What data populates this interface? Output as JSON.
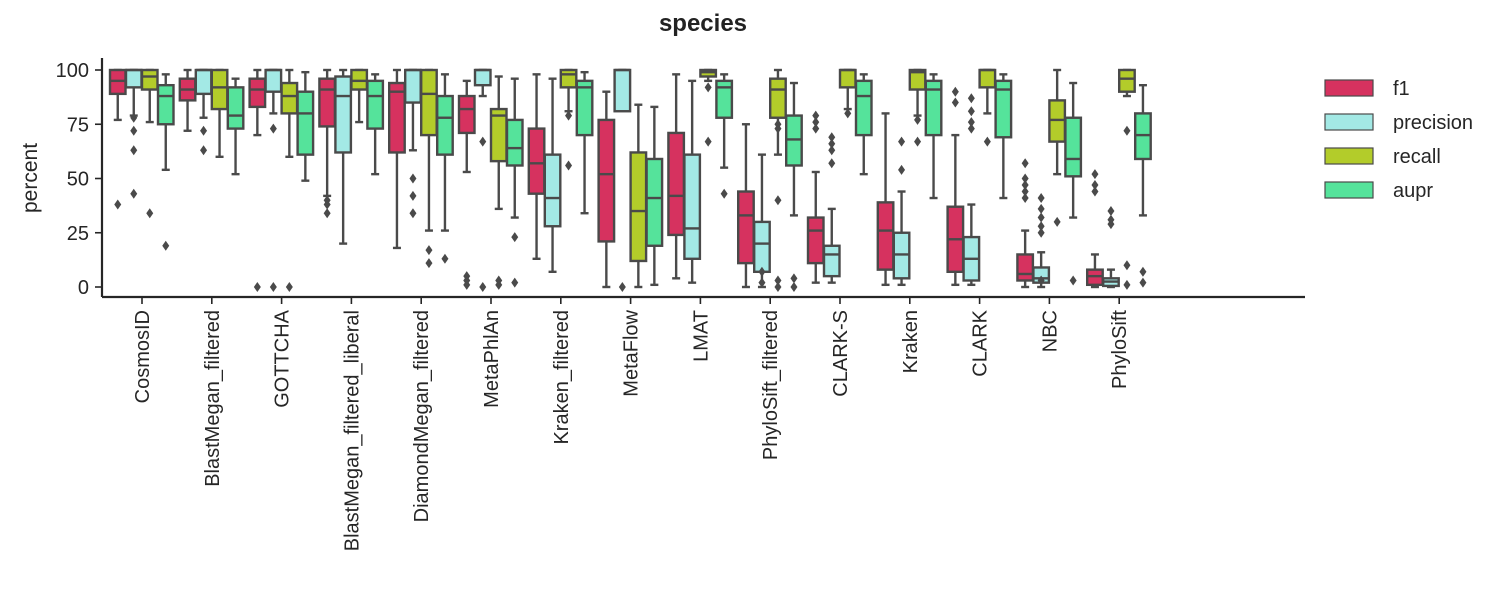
{
  "chart_data": {
    "type": "boxplot",
    "title": "species",
    "xlabel": "",
    "ylabel": "percent",
    "ylim": [
      -4,
      105
    ],
    "yticks": [
      0,
      25,
      50,
      75,
      100
    ],
    "grid": false,
    "legend_position": "right",
    "series_names": [
      "f1",
      "precision",
      "recall",
      "aupr"
    ],
    "series_colors": [
      "#d6325f",
      "#a3e9e5",
      "#b3cc2a",
      "#55e39b"
    ],
    "edge_color": "#4a4a4a",
    "categories": [
      "CosmosID",
      "BlastMegan_filtered",
      "GOTTCHA",
      "BlastMegan_filtered_liberal",
      "DiamondMegan_filtered",
      "MetaPhlAn",
      "Kraken_filtered",
      "MetaFlow",
      "LMAT",
      "PhyloSift_filtered",
      "CLARK-S",
      "Kraken",
      "CLARK",
      "NBC",
      "PhyloSift"
    ],
    "boxes": [
      [
        {
          "lo": 77,
          "q1": 89,
          "med": 95,
          "q3": 100,
          "hi": 100,
          "fliers": [
            38
          ]
        },
        {
          "lo": 79,
          "q1": 92,
          "med": 100,
          "q3": 100,
          "hi": 100,
          "fliers": [
            78,
            72,
            63,
            43
          ]
        },
        {
          "lo": 76,
          "q1": 91,
          "med": 97,
          "q3": 100,
          "hi": 100,
          "fliers": [
            34
          ]
        },
        {
          "lo": 54,
          "q1": 75,
          "med": 88,
          "q3": 93,
          "hi": 98,
          "fliers": [
            19
          ]
        }
      ],
      [
        {
          "lo": 72,
          "q1": 86,
          "med": 91,
          "q3": 96,
          "hi": 100,
          "fliers": []
        },
        {
          "lo": 78,
          "q1": 89,
          "med": 100,
          "q3": 100,
          "hi": 100,
          "fliers": [
            72,
            63
          ]
        },
        {
          "lo": 60,
          "q1": 82,
          "med": 92,
          "q3": 100,
          "hi": 100,
          "fliers": []
        },
        {
          "lo": 52,
          "q1": 73,
          "med": 79,
          "q3": 92,
          "hi": 96,
          "fliers": []
        }
      ],
      [
        {
          "lo": 70,
          "q1": 83,
          "med": 91,
          "q3": 96,
          "hi": 100,
          "fliers": [
            0
          ]
        },
        {
          "lo": 80,
          "q1": 90,
          "med": 100,
          "q3": 100,
          "hi": 100,
          "fliers": [
            73,
            0
          ]
        },
        {
          "lo": 60,
          "q1": 80,
          "med": 88,
          "q3": 94,
          "hi": 100,
          "fliers": [
            0
          ]
        },
        {
          "lo": 49,
          "q1": 61,
          "med": 80,
          "q3": 90,
          "hi": 99,
          "fliers": []
        }
      ],
      [
        {
          "lo": 42,
          "q1": 74,
          "med": 91,
          "q3": 96,
          "hi": 100,
          "fliers": [
            40,
            38,
            34
          ]
        },
        {
          "lo": 20,
          "q1": 62,
          "med": 88,
          "q3": 97,
          "hi": 100,
          "fliers": []
        },
        {
          "lo": 76,
          "q1": 91,
          "med": 95,
          "q3": 100,
          "hi": 100,
          "fliers": []
        },
        {
          "lo": 52,
          "q1": 73,
          "med": 88,
          "q3": 95,
          "hi": 98,
          "fliers": []
        }
      ],
      [
        {
          "lo": 18,
          "q1": 62,
          "med": 90,
          "q3": 94,
          "hi": 100,
          "fliers": []
        },
        {
          "lo": 63,
          "q1": 85,
          "med": 100,
          "q3": 100,
          "hi": 100,
          "fliers": [
            50,
            42,
            34
          ]
        },
        {
          "lo": 26,
          "q1": 70,
          "med": 89,
          "q3": 100,
          "hi": 100,
          "fliers": [
            17,
            11
          ]
        },
        {
          "lo": 26,
          "q1": 61,
          "med": 78,
          "q3": 88,
          "hi": 98,
          "fliers": [
            13
          ]
        }
      ],
      [
        {
          "lo": 53,
          "q1": 71,
          "med": 82,
          "q3": 88,
          "hi": 95,
          "fliers": [
            5,
            3,
            1
          ]
        },
        {
          "lo": 88,
          "q1": 93,
          "med": 100,
          "q3": 100,
          "hi": 100,
          "fliers": [
            67,
            0
          ]
        },
        {
          "lo": 36,
          "q1": 58,
          "med": 79,
          "q3": 82,
          "hi": 97,
          "fliers": [
            3,
            1
          ]
        },
        {
          "lo": 32,
          "q1": 56,
          "med": 64,
          "q3": 77,
          "hi": 96,
          "fliers": [
            23,
            2
          ]
        }
      ],
      [
        {
          "lo": 13,
          "q1": 43,
          "med": 57,
          "q3": 73,
          "hi": 98,
          "fliers": []
        },
        {
          "lo": 7,
          "q1": 28,
          "med": 41,
          "q3": 61,
          "hi": 96,
          "fliers": []
        },
        {
          "lo": 81,
          "q1": 92,
          "med": 98,
          "q3": 100,
          "hi": 100,
          "fliers": [
            79,
            56
          ]
        },
        {
          "lo": 34,
          "q1": 70,
          "med": 92,
          "q3": 95,
          "hi": 99,
          "fliers": []
        }
      ],
      [
        {
          "lo": 0,
          "q1": 21,
          "med": 52,
          "q3": 77,
          "hi": 90,
          "fliers": []
        },
        {
          "lo": 86,
          "q1": 81,
          "med": 100,
          "q3": 100,
          "hi": 100,
          "fliers": [
            0
          ]
        },
        {
          "lo": 0,
          "q1": 12,
          "med": 35,
          "q3": 62,
          "hi": 84,
          "fliers": []
        },
        {
          "lo": 1,
          "q1": 19,
          "med": 41,
          "q3": 59,
          "hi": 83,
          "fliers": []
        }
      ],
      [
        {
          "lo": 4,
          "q1": 24,
          "med": 42,
          "q3": 71,
          "hi": 98,
          "fliers": []
        },
        {
          "lo": 2,
          "q1": 13,
          "med": 27,
          "q3": 61,
          "hi": 95,
          "fliers": []
        },
        {
          "lo": 95,
          "q1": 97,
          "med": 99,
          "q3": 100,
          "hi": 100,
          "fliers": [
            92,
            67
          ]
        },
        {
          "lo": 55,
          "q1": 78,
          "med": 92,
          "q3": 95,
          "hi": 98,
          "fliers": [
            43
          ]
        }
      ],
      [
        {
          "lo": 0,
          "q1": 11,
          "med": 33,
          "q3": 44,
          "hi": 75,
          "fliers": []
        },
        {
          "lo": 0,
          "q1": 7,
          "med": 20,
          "q3": 30,
          "hi": 61,
          "fliers": [
            7,
            2
          ]
        },
        {
          "lo": 61,
          "q1": 78,
          "med": 91,
          "q3": 96,
          "hi": 100,
          "fliers": [
            75,
            73,
            40,
            3,
            0
          ]
        },
        {
          "lo": 33,
          "q1": 56,
          "med": 68,
          "q3": 79,
          "hi": 94,
          "fliers": [
            4,
            0
          ]
        }
      ],
      [
        {
          "lo": 2,
          "q1": 11,
          "med": 26,
          "q3": 32,
          "hi": 53,
          "fliers": [
            79,
            76,
            73
          ]
        },
        {
          "lo": 2,
          "q1": 5,
          "med": 15,
          "q3": 19,
          "hi": 36,
          "fliers": [
            69,
            66,
            63,
            57
          ]
        },
        {
          "lo": 82,
          "q1": 92,
          "med": 100,
          "q3": 100,
          "hi": 100,
          "fliers": [
            80
          ]
        },
        {
          "lo": 52,
          "q1": 70,
          "med": 88,
          "q3": 95,
          "hi": 98,
          "fliers": []
        }
      ],
      [
        {
          "lo": 1,
          "q1": 8,
          "med": 26,
          "q3": 39,
          "hi": 80,
          "fliers": []
        },
        {
          "lo": 1,
          "q1": 4,
          "med": 15,
          "q3": 25,
          "hi": 44,
          "fliers": [
            67,
            54
          ]
        },
        {
          "lo": 79,
          "q1": 91,
          "med": 99,
          "q3": 100,
          "hi": 100,
          "fliers": [
            77,
            67
          ]
        },
        {
          "lo": 41,
          "q1": 70,
          "med": 91,
          "q3": 95,
          "hi": 98,
          "fliers": []
        }
      ],
      [
        {
          "lo": 1,
          "q1": 7,
          "med": 22,
          "q3": 37,
          "hi": 70,
          "fliers": [
            90,
            85
          ]
        },
        {
          "lo": 1,
          "q1": 3,
          "med": 13,
          "q3": 23,
          "hi": 38,
          "fliers": [
            87,
            81,
            76,
            73
          ]
        },
        {
          "lo": 80,
          "q1": 92,
          "med": 100,
          "q3": 100,
          "hi": 100,
          "fliers": [
            67
          ]
        },
        {
          "lo": 41,
          "q1": 69,
          "med": 91,
          "q3": 95,
          "hi": 98,
          "fliers": []
        }
      ],
      [
        {
          "lo": 0,
          "q1": 3,
          "med": 6,
          "q3": 15,
          "hi": 26,
          "fliers": [
            57,
            50,
            47,
            44,
            41
          ]
        },
        {
          "lo": 0,
          "q1": 2,
          "med": 4,
          "q3": 9,
          "hi": 16,
          "fliers": [
            41,
            36,
            32,
            28,
            25,
            3
          ]
        },
        {
          "lo": 52,
          "q1": 67,
          "med": 77,
          "q3": 86,
          "hi": 100,
          "fliers": [
            30
          ]
        },
        {
          "lo": 32,
          "q1": 51,
          "med": 59,
          "q3": 78,
          "hi": 94,
          "fliers": [
            3
          ]
        }
      ],
      [
        {
          "lo": 0,
          "q1": 1,
          "med": 5,
          "q3": 8,
          "hi": 15,
          "fliers": [
            52,
            47,
            44
          ]
        },
        {
          "lo": 0,
          "q1": 0.5,
          "med": 2.5,
          "q3": 4,
          "hi": 8,
          "fliers": [
            35,
            31,
            29
          ]
        },
        {
          "lo": 88,
          "q1": 90,
          "med": 96,
          "q3": 100,
          "hi": 100,
          "fliers": [
            72,
            10,
            1
          ]
        },
        {
          "lo": 33,
          "q1": 59,
          "med": 70,
          "q3": 80,
          "hi": 93,
          "fliers": [
            7,
            2
          ]
        }
      ]
    ]
  }
}
